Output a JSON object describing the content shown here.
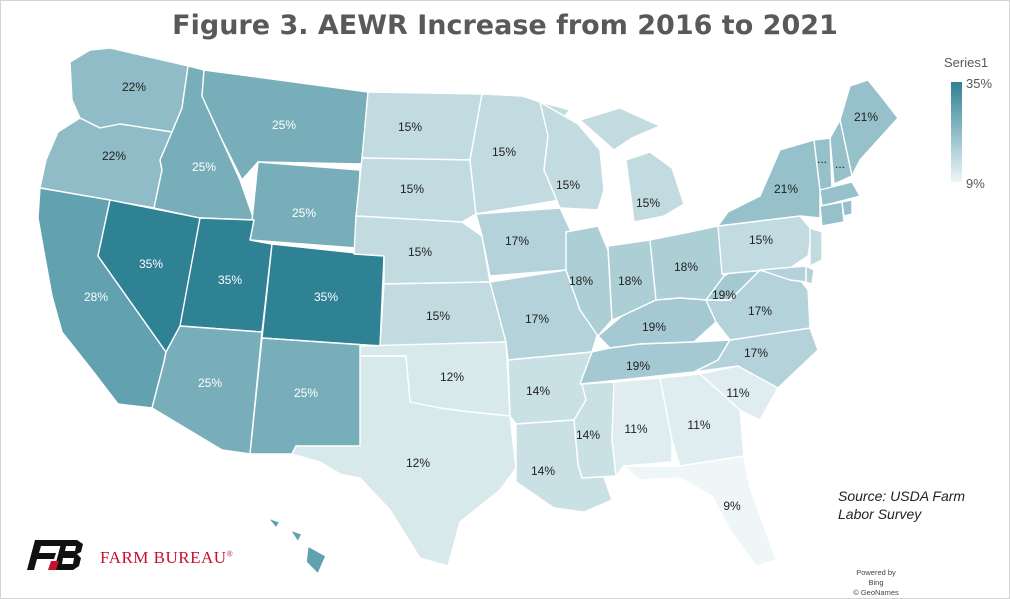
{
  "title": "Figure 3. AEWR Increase from 2016 to 2021",
  "legend": {
    "title": "Series1",
    "max_label": "35%",
    "min_label": "9%",
    "min_color": "#eef6f8",
    "max_color": "#2f8194"
  },
  "source": "Source: USDA Farm Labor Survey",
  "brand": {
    "name": "FARM BUREAU",
    "mark": "®"
  },
  "attribution": {
    "powered": "Powered by Bing",
    "geonames": "© GeoNames"
  },
  "chart_data": {
    "type": "choropleth",
    "title": "Figure 3. AEWR Increase from 2016 to 2021",
    "legend_title": "Series1",
    "value_range": [
      9,
      35
    ],
    "legend_placement": "top-right",
    "states": [
      {
        "name": "WA",
        "value": 22,
        "label": "22%"
      },
      {
        "name": "OR",
        "value": 22,
        "label": "22%"
      },
      {
        "name": "CA",
        "value": 28,
        "label": "28%"
      },
      {
        "name": "NV",
        "value": 35,
        "label": "35%"
      },
      {
        "name": "ID",
        "value": 25,
        "label": "25%"
      },
      {
        "name": "MT",
        "value": 25,
        "label": "25%"
      },
      {
        "name": "WY",
        "value": 25,
        "label": "25%"
      },
      {
        "name": "UT",
        "value": 35,
        "label": "35%"
      },
      {
        "name": "CO",
        "value": 35,
        "label": "35%"
      },
      {
        "name": "AZ",
        "value": 25,
        "label": "25%"
      },
      {
        "name": "NM",
        "value": 25,
        "label": "25%"
      },
      {
        "name": "ND",
        "value": 15,
        "label": "15%"
      },
      {
        "name": "SD",
        "value": 15,
        "label": "15%"
      },
      {
        "name": "NE",
        "value": 15,
        "label": "15%"
      },
      {
        "name": "KS",
        "value": 15,
        "label": "15%"
      },
      {
        "name": "OK",
        "value": 12,
        "label": "12%"
      },
      {
        "name": "TX",
        "value": 12,
        "label": "12%"
      },
      {
        "name": "MN",
        "value": 15,
        "label": "15%"
      },
      {
        "name": "IA",
        "value": 17,
        "label": "17%"
      },
      {
        "name": "MO",
        "value": 17,
        "label": "17%"
      },
      {
        "name": "AR",
        "value": 14,
        "label": "14%"
      },
      {
        "name": "LA",
        "value": 14,
        "label": "14%"
      },
      {
        "name": "WI",
        "value": 15,
        "label": "15%"
      },
      {
        "name": "IL",
        "value": 18,
        "label": "18%"
      },
      {
        "name": "MI",
        "value": 15,
        "label": "15%"
      },
      {
        "name": "IN",
        "value": 18,
        "label": "18%"
      },
      {
        "name": "OH",
        "value": 18,
        "label": "18%"
      },
      {
        "name": "KY",
        "value": 19,
        "label": "19%"
      },
      {
        "name": "TN",
        "value": 19,
        "label": "19%"
      },
      {
        "name": "MS",
        "value": 14,
        "label": "14%"
      },
      {
        "name": "AL",
        "value": 11,
        "label": "11%"
      },
      {
        "name": "GA",
        "value": 11,
        "label": "11%"
      },
      {
        "name": "FL",
        "value": 9,
        "label": "9%"
      },
      {
        "name": "SC",
        "value": 11,
        "label": "11%"
      },
      {
        "name": "NC",
        "value": 17,
        "label": "17%"
      },
      {
        "name": "VA",
        "value": 17,
        "label": "17%"
      },
      {
        "name": "WV",
        "value": 19,
        "label": "19%"
      },
      {
        "name": "PA",
        "value": 15,
        "label": "15%"
      },
      {
        "name": "NY",
        "value": 21,
        "label": "21%"
      },
      {
        "name": "ME",
        "value": 21,
        "label": "21%"
      },
      {
        "name": "VT",
        "value": 21,
        "label": "..."
      },
      {
        "name": "NH",
        "value": 21,
        "label": "..."
      },
      {
        "name": "MA",
        "value": 21,
        "label": ""
      },
      {
        "name": "CT",
        "value": 21,
        "label": ""
      },
      {
        "name": "RI",
        "value": 21,
        "label": ""
      },
      {
        "name": "NJ",
        "value": 15,
        "label": ""
      },
      {
        "name": "DE",
        "value": 17,
        "label": ""
      },
      {
        "name": "MD",
        "value": 17,
        "label": ""
      },
      {
        "name": "HI",
        "value": 28,
        "label": ""
      }
    ]
  }
}
